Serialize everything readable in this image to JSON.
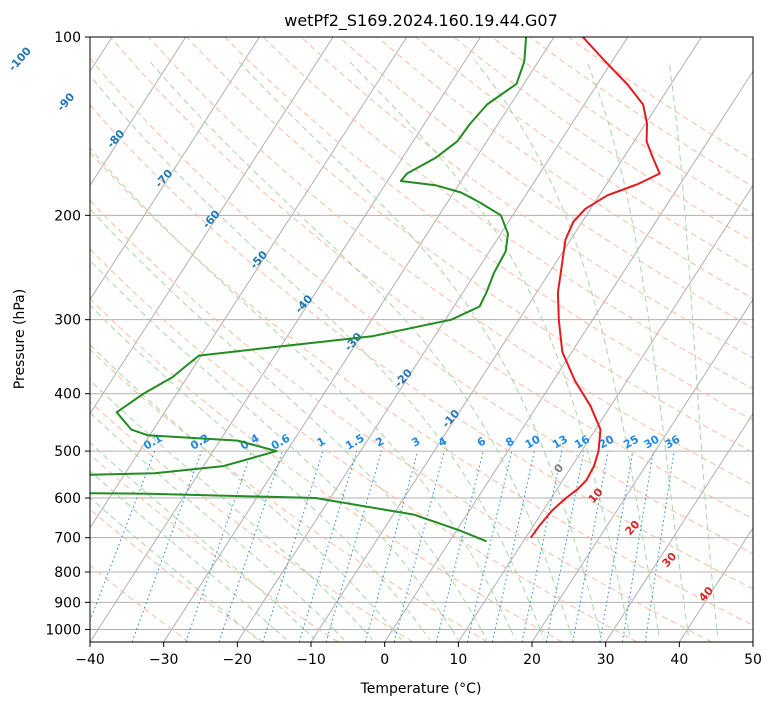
{
  "chart_data": {
    "type": "line",
    "title": "wetPf2_S169.2024.160.19.44.G07",
    "xlabel": "Temperature (°C)",
    "ylabel": "Pressure (hPa)",
    "xlim": [
      -40,
      50
    ],
    "ylim": [
      1050,
      100
    ],
    "y_scale": "log",
    "skew": "skew-T log-P",
    "x_ticks": [
      "−40",
      "−30",
      "−20",
      "−10",
      "0",
      "10",
      "20",
      "30",
      "40",
      "50"
    ],
    "y_ticks": [
      "100",
      "200",
      "300",
      "400",
      "500",
      "600",
      "700",
      "800",
      "900",
      "1000"
    ],
    "grid": true,
    "colors": {
      "temperature": "#e41a1c",
      "dewpoint": "#228b22",
      "isotherm": "#b0b0b0",
      "dry_adiabat": "#fcbba1",
      "moist_adiabat": "#a6d8a6",
      "mixing_ratio": "#1e88e5",
      "isotherm_label": "#1f77b4",
      "moist_label": "#d62728"
    },
    "isotherm_labels": [
      "-100",
      "-90",
      "-80",
      "-70",
      "-60",
      "-50",
      "-40",
      "-30",
      "-20",
      "-10"
    ],
    "mixing_ratio_labels": [
      "0.1",
      "0.2",
      "0.4",
      "0.6",
      "1",
      "1.5",
      "2",
      "3",
      "4",
      "6",
      "8",
      "10",
      "13",
      "16",
      "20",
      "25",
      "30",
      "36"
    ],
    "moist_adiabat_labels": [
      "0",
      "10",
      "20",
      "30",
      "40"
    ],
    "series": [
      {
        "key": "temperature",
        "points": [
          [
            10.7,
            700
          ],
          [
            10.8,
            670
          ],
          [
            11.2,
            630
          ],
          [
            12.0,
            600
          ],
          [
            12.8,
            580
          ],
          [
            13.2,
            560
          ],
          [
            13.0,
            530
          ],
          [
            12.3,
            500
          ],
          [
            10.7,
            460
          ],
          [
            7.3,
            420
          ],
          [
            2.9,
            380
          ],
          [
            -1.3,
            340
          ],
          [
            -4.6,
            300
          ],
          [
            -7.1,
            270
          ],
          [
            -8.8,
            245
          ],
          [
            -10.7,
            220
          ],
          [
            -11.2,
            205
          ],
          [
            -10.7,
            195
          ],
          [
            -8.9,
            185
          ],
          [
            -5.7,
            177
          ],
          [
            -3.7,
            170
          ],
          [
            -6.0,
            160
          ],
          [
            -8.3,
            150
          ],
          [
            -9.8,
            140
          ],
          [
            -12.0,
            130
          ],
          [
            -16.0,
            120
          ],
          [
            -20.9,
            110
          ],
          [
            -26.1,
            100
          ]
        ]
      },
      {
        "key": "dewpoint",
        "points": [
          [
            5.0,
            710
          ],
          [
            0.3,
            680
          ],
          [
            -7.2,
            640
          ],
          [
            -22.0,
            600
          ],
          [
            -45.0,
            590
          ],
          [
            -60.0,
            588
          ],
          [
            -70.0,
            588
          ],
          [
            -60.0,
            550
          ],
          [
            -46.0,
            545
          ],
          [
            -37.3,
            530
          ],
          [
            -31.4,
            500
          ],
          [
            -37.6,
            480
          ],
          [
            -50.3,
            470
          ],
          [
            -53.0,
            460
          ],
          [
            -56.5,
            430
          ],
          [
            -54.5,
            400
          ],
          [
            -52.0,
            375
          ],
          [
            -51.2,
            360
          ],
          [
            -50.3,
            345
          ],
          [
            -42.0,
            335
          ],
          [
            -28.5,
            320
          ],
          [
            -19.2,
            300
          ],
          [
            -16.5,
            285
          ],
          [
            -16.8,
            270
          ],
          [
            -17.5,
            250
          ],
          [
            -17.8,
            230
          ],
          [
            -19.0,
            215
          ],
          [
            -21.6,
            200
          ],
          [
            -25.7,
            190
          ],
          [
            -29.0,
            183
          ],
          [
            -33.0,
            178
          ],
          [
            -38.2,
            175
          ],
          [
            -38.0,
            170
          ],
          [
            -35.5,
            160
          ],
          [
            -34.0,
            150
          ],
          [
            -33.8,
            140
          ],
          [
            -33.2,
            130
          ],
          [
            -31.0,
            120
          ],
          [
            -31.9,
            110
          ],
          [
            -33.8,
            100
          ]
        ]
      }
    ]
  }
}
